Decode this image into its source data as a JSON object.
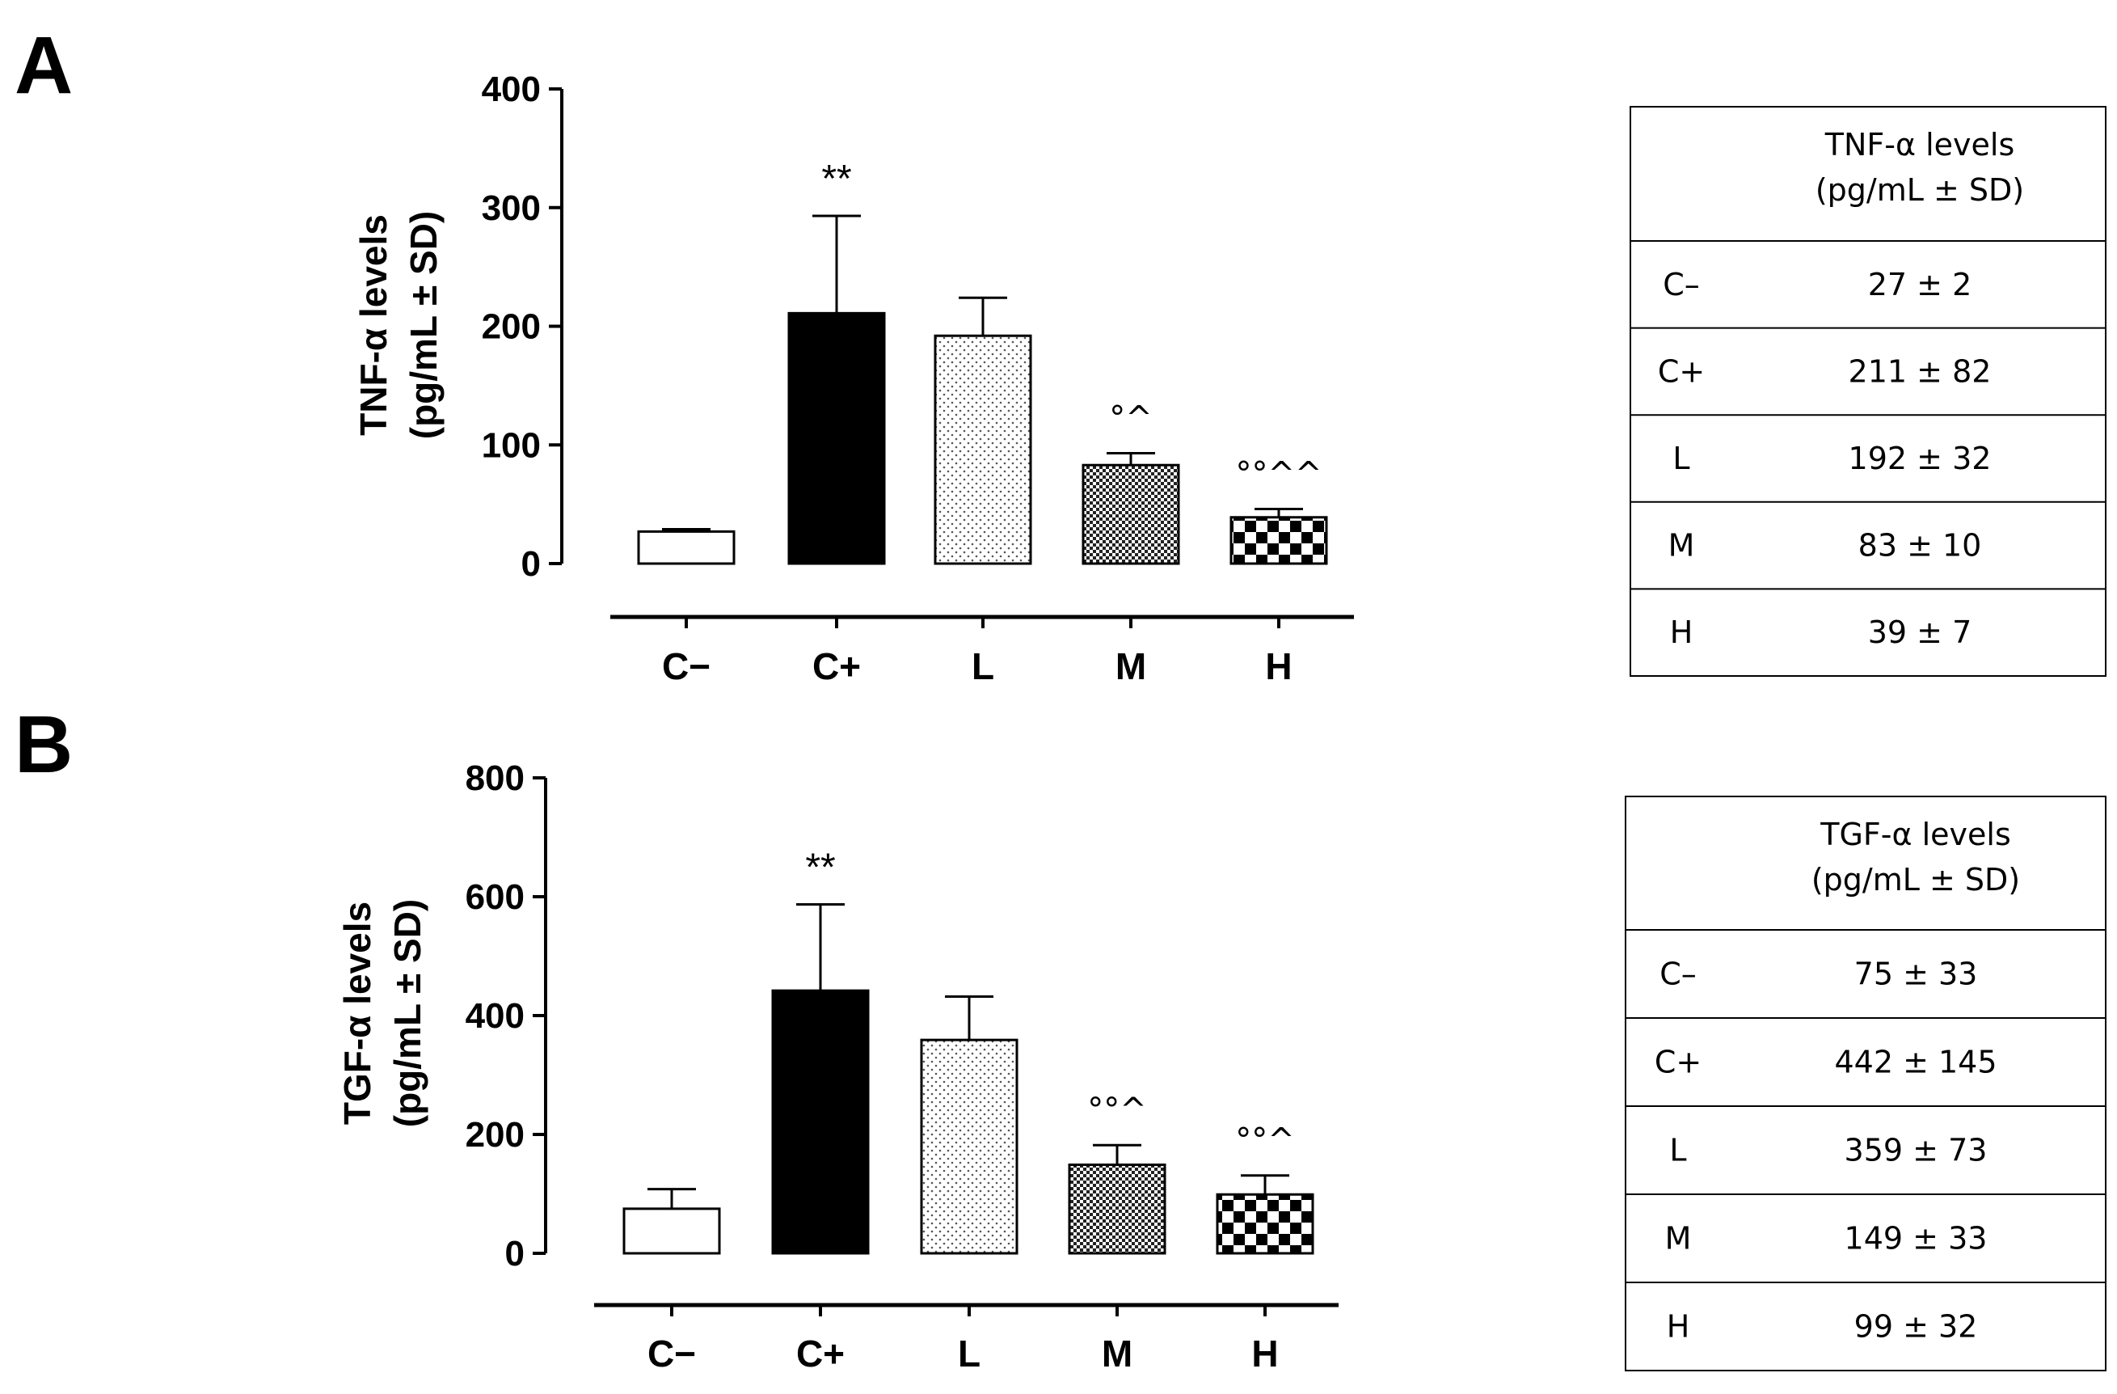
{
  "panels": [
    {
      "letter": "A",
      "ylabel_line1": "TNF-α levels",
      "ylabel_line2": "(pg/mL ± SD)"
    },
    {
      "letter": "B",
      "ylabel_line1": "TGF-α levels",
      "ylabel_line2": "(pg/mL ± SD)"
    }
  ],
  "chart_data": [
    {
      "type": "bar",
      "panel": "A",
      "categories": [
        "C−",
        "C+",
        "L",
        "M",
        "H"
      ],
      "values": [
        27,
        211,
        192,
        83,
        39
      ],
      "errors": [
        2,
        82,
        32,
        10,
        7
      ],
      "fills": [
        "white",
        "black",
        "dots",
        "dense-check",
        "check"
      ],
      "annotations": [
        "",
        "**",
        "",
        "°^",
        "°°^^"
      ],
      "yticks": [
        0,
        100,
        200,
        300,
        400
      ],
      "ylim": [
        0,
        400
      ],
      "ylabel": "TNF-α levels (pg/mL ± SD)",
      "xlabel": ""
    },
    {
      "type": "bar",
      "panel": "B",
      "categories": [
        "C−",
        "C+",
        "L",
        "M",
        "H"
      ],
      "values": [
        75,
        442,
        359,
        149,
        99
      ],
      "errors": [
        33,
        145,
        73,
        33,
        32
      ],
      "fills": [
        "white",
        "black",
        "dots",
        "dense-check",
        "check"
      ],
      "annotations": [
        "",
        "**",
        "",
        "°°^",
        "°°^"
      ],
      "yticks": [
        0,
        200,
        400,
        600,
        800
      ],
      "ylim": [
        0,
        800
      ],
      "ylabel": "TGF-α levels (pg/mL ± SD)",
      "xlabel": ""
    }
  ],
  "tables": [
    {
      "header_line1": "TNF-α levels",
      "header_line2": "(pg/mL ± SD)",
      "rows": [
        {
          "group": "C–",
          "value": "27 ± 2"
        },
        {
          "group": "C+",
          "value": "211 ± 82"
        },
        {
          "group": "L",
          "value": "192 ± 32"
        },
        {
          "group": "M",
          "value": "83 ± 10"
        },
        {
          "group": "H",
          "value": "39 ±  7"
        }
      ]
    },
    {
      "header_line1": "TGF-α levels",
      "header_line2": "(pg/mL ± SD)",
      "rows": [
        {
          "group": "C–",
          "value": "75 ± 33"
        },
        {
          "group": "C+",
          "value": "442 ± 145"
        },
        {
          "group": "L",
          "value": "359 ± 73"
        },
        {
          "group": "M",
          "value": "149 ± 33"
        },
        {
          "group": "H",
          "value": "99 ± 32"
        }
      ]
    }
  ]
}
